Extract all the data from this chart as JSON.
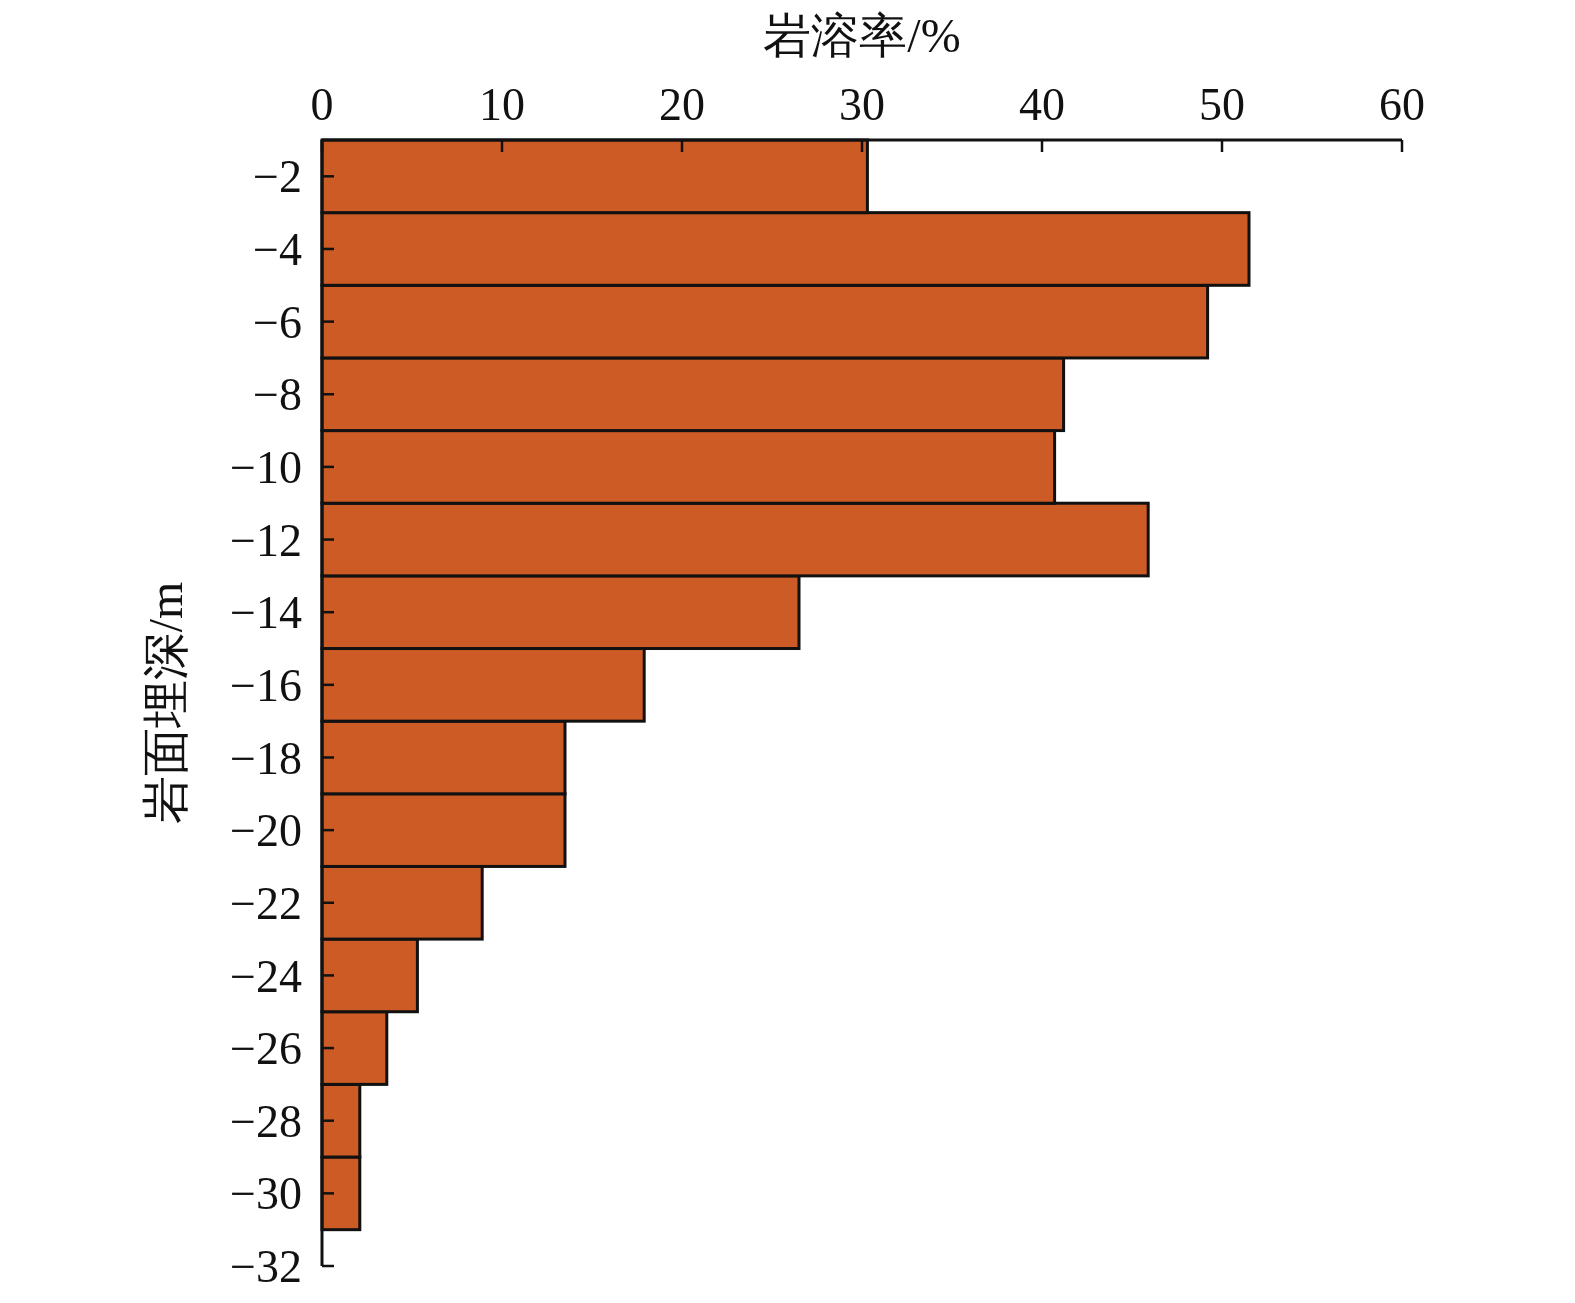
{
  "chart_data": {
    "type": "histogram",
    "orientation": "horizontal",
    "xlabel": "岩溶率/%",
    "ylabel": "岩面埋深/m",
    "bins": [
      -31,
      -29,
      -27,
      -25,
      -23,
      -21,
      -19,
      -17,
      -15,
      -13,
      -11,
      -9,
      -7,
      -5,
      -3,
      -1
    ],
    "values": [
      2.1,
      2.1,
      3.6,
      5.3,
      8.9,
      13.5,
      13.5,
      17.9,
      26.5,
      45.9,
      40.7,
      41.2,
      49.2,
      51.5,
      30.3
    ],
    "color": "#cd5b25",
    "xlim": [
      0,
      60
    ],
    "xticks": [
      0,
      10,
      20,
      30,
      40,
      50,
      60
    ],
    "ylim": [
      -32,
      -1
    ],
    "yticks": [
      -2,
      -4,
      -6,
      -8,
      -10,
      -12,
      -14,
      -16,
      -18,
      -20,
      -22,
      -24,
      -26,
      -28,
      -30,
      -32
    ]
  }
}
